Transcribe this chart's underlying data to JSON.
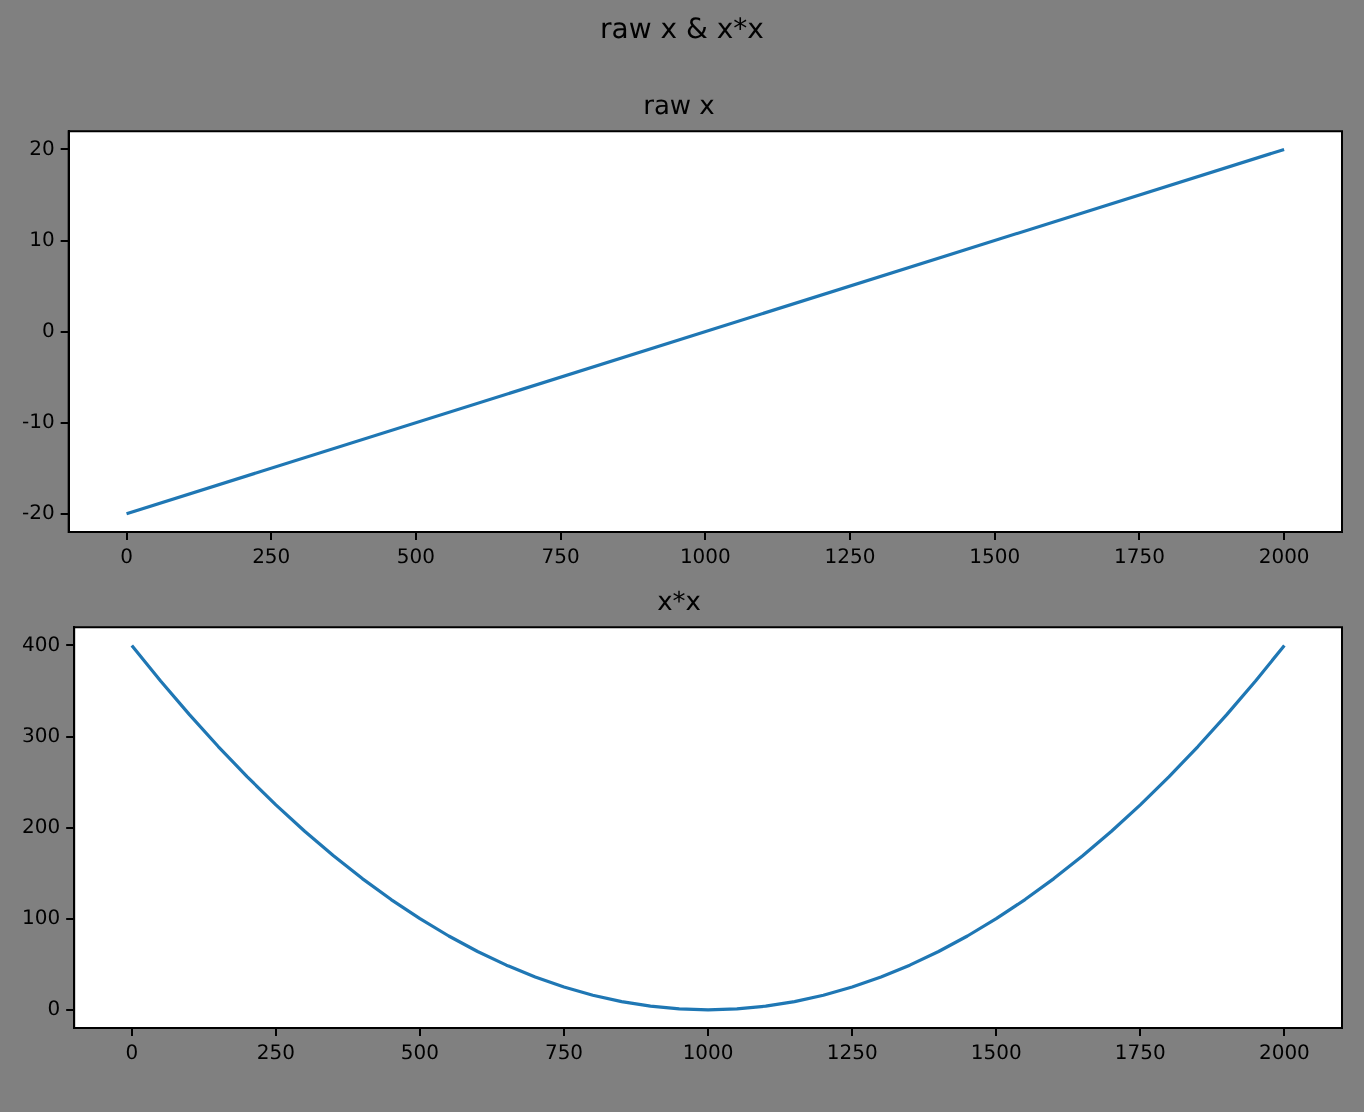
{
  "chart_data": [
    {
      "type": "line",
      "title": "raw x",
      "annotations": [
        "raw x & x*x"
      ],
      "x": [
        0,
        2000
      ],
      "series": [
        {
          "color": "#1f77b4",
          "values": [
            -20,
            20
          ]
        }
      ],
      "xlim": [
        -100,
        2100
      ],
      "xticks": [
        0,
        250,
        500,
        750,
        1000,
        1250,
        1500,
        1750,
        2000
      ],
      "ylim": [
        -22,
        22
      ],
      "yticks": [
        -20,
        -10,
        0,
        10,
        20
      ],
      "legend": false,
      "grid": false
    },
    {
      "type": "line",
      "title": "x*x",
      "x": [
        0,
        50,
        100,
        150,
        200,
        250,
        300,
        350,
        400,
        450,
        500,
        550,
        600,
        650,
        700,
        750,
        800,
        850,
        900,
        950,
        1000,
        1050,
        1100,
        1150,
        1200,
        1250,
        1300,
        1350,
        1400,
        1450,
        1500,
        1550,
        1600,
        1650,
        1700,
        1750,
        1800,
        1850,
        1900,
        1950,
        2000
      ],
      "series": [
        {
          "color": "#1f77b4",
          "values": [
            400,
            361,
            324,
            289,
            256,
            225,
            196,
            169,
            144,
            121,
            100,
            81,
            64,
            49,
            36,
            25,
            16,
            9,
            4,
            1,
            0,
            1,
            4,
            9,
            16,
            25,
            36,
            49,
            64,
            81,
            100,
            121,
            144,
            169,
            196,
            225,
            256,
            289,
            324,
            361,
            400
          ]
        }
      ],
      "xlim": [
        -100,
        2100
      ],
      "xticks": [
        0,
        250,
        500,
        750,
        1000,
        1250,
        1500,
        1750,
        2000
      ],
      "ylim": [
        -20,
        420
      ],
      "yticks": [
        0,
        100,
        200,
        300,
        400
      ],
      "legend": false,
      "grid": false
    }
  ]
}
